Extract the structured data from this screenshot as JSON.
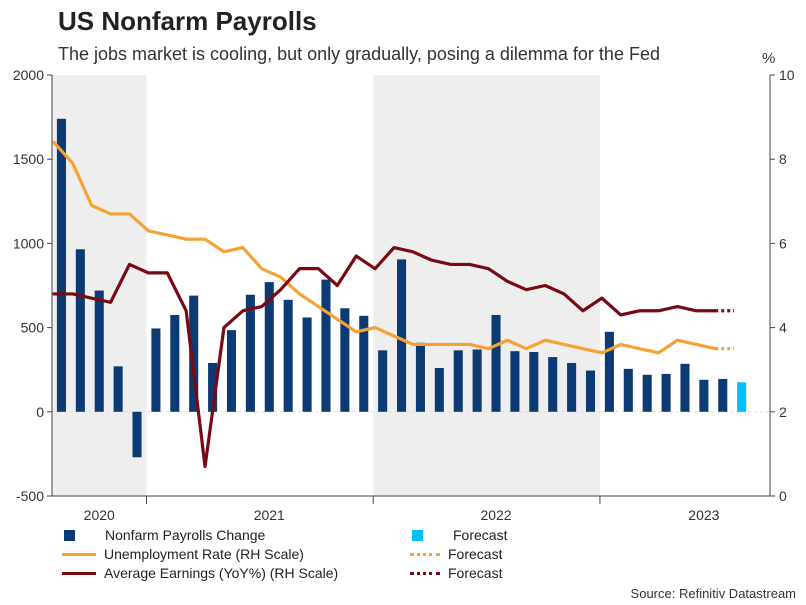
{
  "title": "US Nonfarm Payrolls",
  "subtitle": "The jobs market is cooling, but only gradually, posing a dilemma for the Fed",
  "right_unit": "%",
  "source": "Source: Refinitiv Datastream",
  "colors": {
    "payrolls": "#0b3b72",
    "payrolls_forecast": "#00bfff",
    "unemployment": "#f7a135",
    "earnings": "#7a0a12",
    "shade": "#eeeeef",
    "axis": "#444444"
  },
  "legend": [
    {
      "label": "Nonfarm Payrolls Change",
      "style": "box",
      "color_key": "payrolls"
    },
    {
      "label": "Forecast",
      "style": "box",
      "color_key": "payrolls_forecast"
    },
    {
      "label": "Unemployment Rate (RH Scale)",
      "style": "line",
      "color_key": "unemployment"
    },
    {
      "label": "Forecast",
      "style": "dot",
      "color_key": "unemployment"
    },
    {
      "label": "Average Earnings (YoY%) (RH Scale)",
      "style": "line",
      "color_key": "earnings"
    },
    {
      "label": "Forecast",
      "style": "dot",
      "color_key": "earnings"
    }
  ],
  "chart_data": {
    "type": "bar",
    "title": "US Nonfarm Payrolls",
    "left_axis": {
      "min": -500,
      "max": 2000,
      "ticks": [
        -500,
        0,
        500,
        1000,
        1500,
        2000
      ]
    },
    "right_axis": {
      "min": 0,
      "max": 10,
      "ticks": [
        0,
        2,
        4,
        6,
        8,
        10
      ],
      "label": "%"
    },
    "x_range": [
      0,
      38
    ],
    "year_labels": [
      {
        "label": "2020",
        "center": 2.5
      },
      {
        "label": "2021",
        "center": 11.5
      },
      {
        "label": "2022",
        "center": 23.5
      },
      {
        "label": "2023",
        "center": 34.5
      }
    ],
    "year_dividers": [
      5,
      17,
      29
    ],
    "shaded_periods": [
      [
        0,
        5
      ],
      [
        17,
        29
      ]
    ],
    "payrolls": {
      "name": "Nonfarm Payrolls Change",
      "values": [
        1740,
        965,
        720,
        270,
        -270,
        495,
        575,
        690,
        290,
        485,
        695,
        770,
        665,
        560,
        785,
        615,
        570,
        365,
        905,
        410,
        260,
        365,
        370,
        575,
        360,
        355,
        325,
        290,
        245,
        475,
        255,
        220,
        225,
        285,
        190,
        195
      ],
      "forecast": 175
    },
    "unemployment": {
      "name": "Unemployment Rate (RH Scale)",
      "values": [
        8.4,
        7.9,
        6.9,
        6.7,
        6.7,
        6.3,
        6.2,
        6.1,
        6.1,
        5.8,
        5.9,
        5.4,
        5.2,
        4.8,
        4.5,
        4.2,
        3.9,
        4.0,
        3.8,
        3.6,
        3.6,
        3.6,
        3.6,
        3.5,
        3.7,
        3.5,
        3.7,
        3.6,
        3.5,
        3.4,
        3.6,
        3.5,
        3.4,
        3.7,
        3.6,
        3.5
      ],
      "forecast": 3.5
    },
    "earnings": {
      "name": "Average Earnings (YoY%) (RH Scale)",
      "values": [
        4.8,
        4.8,
        4.7,
        4.6,
        5.5,
        5.3,
        5.3,
        4.4,
        0.7,
        4.0,
        4.4,
        4.5,
        4.9,
        5.4,
        5.4,
        5.0,
        5.7,
        5.4,
        5.9,
        5.8,
        5.6,
        5.5,
        5.5,
        5.4,
        5.1,
        4.9,
        5.0,
        4.8,
        4.4,
        4.7,
        4.3,
        4.4,
        4.4,
        4.5,
        4.4,
        4.4
      ],
      "forecast": 4.4
    }
  }
}
